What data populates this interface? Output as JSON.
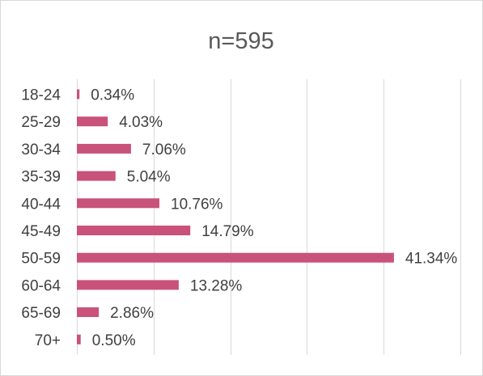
{
  "chart_data": {
    "type": "bar",
    "orientation": "horizontal",
    "title": "n=595",
    "xlabel": "",
    "ylabel": "",
    "categories": [
      "18-24",
      "25-29",
      "30-34",
      "35-39",
      "40-44",
      "45-49",
      "50-59",
      "60-64",
      "65-69",
      "70+"
    ],
    "values": [
      0.34,
      4.03,
      7.06,
      5.04,
      10.76,
      14.79,
      41.34,
      13.28,
      2.86,
      0.5
    ],
    "data_labels": [
      "0.34%",
      "4.03%",
      "7.06%",
      "5.04%",
      "10.76%",
      "14.79%",
      "41.34%",
      "13.28%",
      "2.86%",
      "0.50%"
    ],
    "xlim": [
      0,
      50
    ],
    "x_gridlines": [
      0,
      10,
      20,
      30,
      40,
      50
    ],
    "grid": true,
    "legend": "none",
    "bar_color": "#c9527a",
    "grid_color": "#d9d9d9",
    "text_color": "#404040",
    "title_color": "#595959"
  }
}
